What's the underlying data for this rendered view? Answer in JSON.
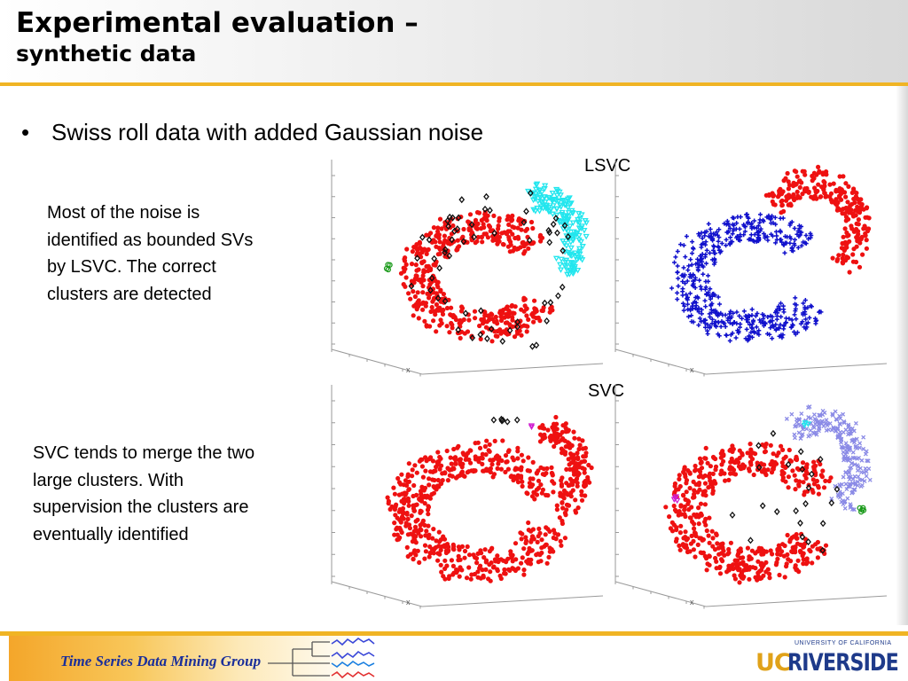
{
  "slide": {
    "title_line1": "Experimental evaluation –",
    "title_line2": "synthetic data",
    "bullet_text": "Swiss roll data with added Gaussian noise",
    "lsvc_label": "LSVC",
    "svc_label": "SVC",
    "lsvc_desc": [
      "Most of the noise is",
      "identified as bounded SVs",
      "by LSVC. The correct",
      "clusters are detected"
    ],
    "svc_desc": [
      "SVC tends to merge the two",
      "large clusters. With",
      "supervision the clusters are",
      "eventually identified"
    ],
    "axis_label": "x"
  },
  "footer": {
    "group_name": "Time Series Data Mining Group",
    "logo_small": "UNIVERSITY OF CALIFORNIA",
    "logo_uc": "UC",
    "logo_riverside": "RIVERSIDE"
  },
  "colors": {
    "accent": "#f0b424",
    "title": "#000000",
    "red_cluster": "#ee1111",
    "blue_cluster": "#1111cc",
    "cyan_cluster": "#22e6ee",
    "lavender_cluster": "#8a8ae6",
    "noise_sv": "#111111",
    "footer_text": "#1b2f9a"
  },
  "icons": [
    "time-series-tree-icon",
    "ucr-logo"
  ]
}
